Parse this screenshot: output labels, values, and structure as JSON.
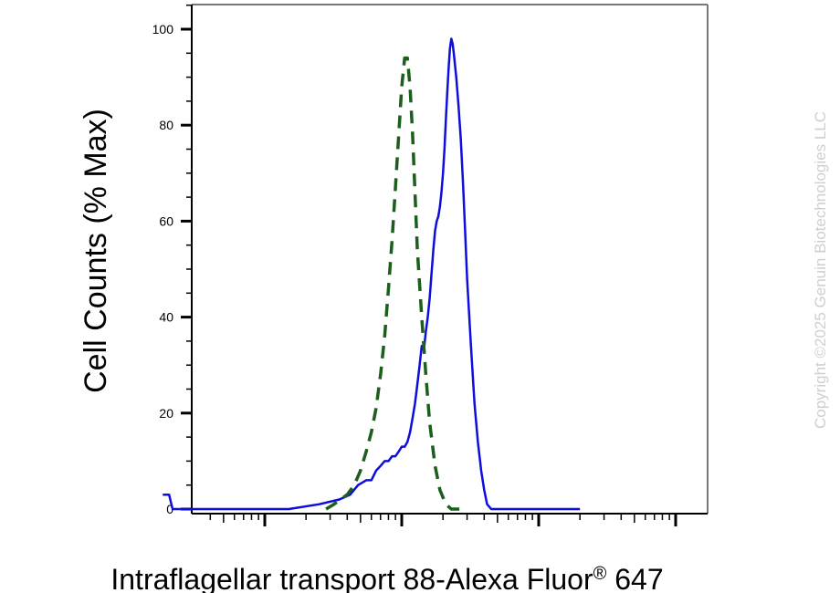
{
  "chart_data": {
    "type": "line",
    "title": "",
    "ylabel": "Cell Counts (% Max)",
    "xlabel": "Intraflagellar transport 88-Alexa Fluor",
    "xlabel_mark": "®",
    "xlabel_suffix": " 647",
    "x_scale": "log",
    "ylim": [
      0,
      105
    ],
    "y_ticks": [
      "100",
      "80",
      "60",
      "40",
      "20",
      "0"
    ],
    "grid": false,
    "series": [
      {
        "color": "#0d0ddd",
        "style": "solid",
        "points": [
          [
            1.8,
            3
          ],
          [
            2.0,
            3
          ],
          [
            2.12,
            0
          ],
          [
            3,
            0
          ],
          [
            15,
            0
          ],
          [
            25,
            1
          ],
          [
            35,
            2
          ],
          [
            42,
            3
          ],
          [
            48,
            5
          ],
          [
            55,
            6
          ],
          [
            60,
            6
          ],
          [
            65,
            8
          ],
          [
            70,
            9
          ],
          [
            75,
            10
          ],
          [
            80,
            10
          ],
          [
            85,
            11
          ],
          [
            90,
            11
          ],
          [
            95,
            12
          ],
          [
            100,
            13
          ],
          [
            105,
            13
          ],
          [
            110,
            14
          ],
          [
            115,
            16
          ],
          [
            120,
            19
          ],
          [
            125,
            22
          ],
          [
            130,
            26
          ],
          [
            135,
            30
          ],
          [
            140,
            34
          ],
          [
            145,
            33
          ],
          [
            150,
            37
          ],
          [
            155,
            40
          ],
          [
            160,
            44
          ],
          [
            165,
            49
          ],
          [
            170,
            54
          ],
          [
            175,
            58
          ],
          [
            180,
            60
          ],
          [
            185,
            61
          ],
          [
            190,
            63
          ],
          [
            195,
            66
          ],
          [
            200,
            70
          ],
          [
            205,
            75
          ],
          [
            210,
            81
          ],
          [
            215,
            87
          ],
          [
            220,
            92
          ],
          [
            225,
            96
          ],
          [
            230,
            98
          ],
          [
            235,
            97
          ],
          [
            240,
            95
          ],
          [
            250,
            90
          ],
          [
            260,
            84
          ],
          [
            270,
            77
          ],
          [
            280,
            68
          ],
          [
            290,
            58
          ],
          [
            300,
            48
          ],
          [
            320,
            34
          ],
          [
            340,
            22
          ],
          [
            360,
            14
          ],
          [
            380,
            8
          ],
          [
            400,
            4
          ],
          [
            420,
            1
          ],
          [
            450,
            0
          ],
          [
            1200,
            0
          ],
          [
            2000,
            0
          ]
        ]
      },
      {
        "color": "#1c5e1c",
        "style": "dashed",
        "points": [
          [
            28,
            0
          ],
          [
            32,
            1
          ],
          [
            40,
            3
          ],
          [
            45,
            5
          ],
          [
            50,
            8
          ],
          [
            55,
            12
          ],
          [
            60,
            16
          ],
          [
            65,
            21
          ],
          [
            70,
            28
          ],
          [
            75,
            36
          ],
          [
            80,
            46
          ],
          [
            85,
            56
          ],
          [
            90,
            67
          ],
          [
            95,
            78
          ],
          [
            100,
            88
          ],
          [
            105,
            94
          ],
          [
            110,
            94
          ],
          [
            115,
            88
          ],
          [
            120,
            78
          ],
          [
            125,
            66
          ],
          [
            130,
            54
          ],
          [
            140,
            40
          ],
          [
            150,
            28
          ],
          [
            160,
            18
          ],
          [
            175,
            9
          ],
          [
            190,
            4
          ],
          [
            210,
            1
          ],
          [
            230,
            0
          ],
          [
            300,
            0
          ]
        ]
      }
    ]
  },
  "watermark": "Copyright ©2025 Genuin Biotechnologies LLC"
}
